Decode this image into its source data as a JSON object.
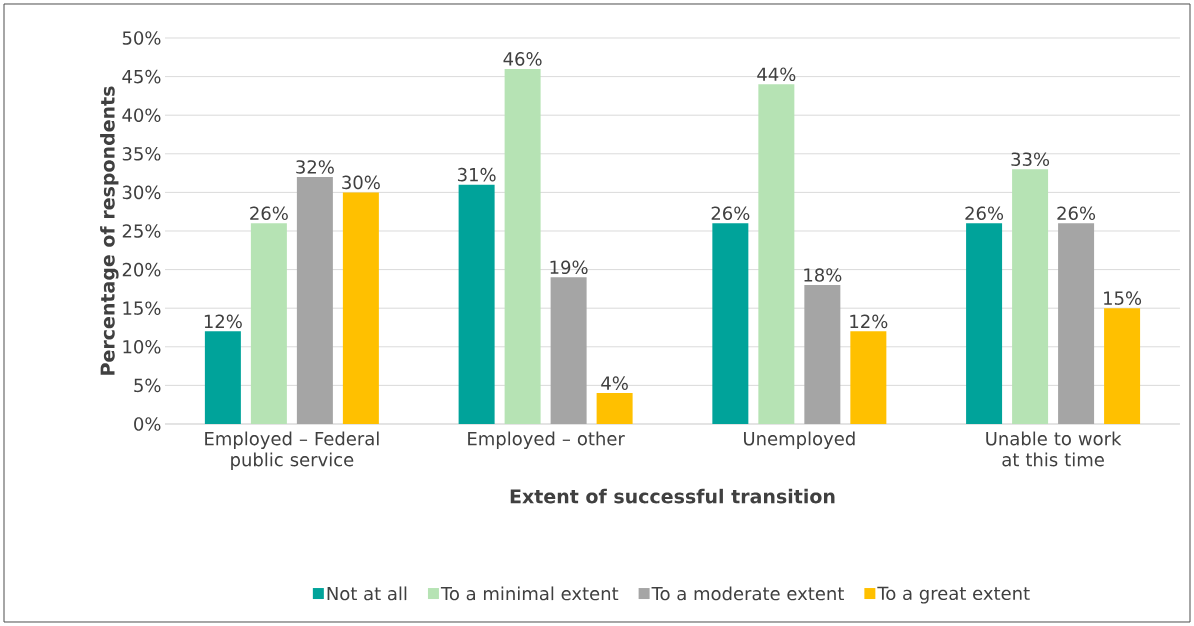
{
  "chart_data": {
    "type": "bar",
    "xlabel": "Extent of successful transition",
    "ylabel": "Percentage of respondents",
    "categories": [
      "Employed – Federal public service",
      "Employed – other",
      "Unemployed",
      "Unable to work at this time"
    ],
    "series": [
      {
        "name": "Not at all",
        "color": "#00a39a",
        "values": [
          12,
          31,
          26,
          26
        ],
        "value_labels": [
          "12%",
          "31%",
          "26%",
          "26%"
        ]
      },
      {
        "name": "To a minimal extent",
        "color": "#b6e3b4",
        "values": [
          26,
          46,
          44,
          33
        ],
        "value_labels": [
          "26%",
          "46%",
          "44%",
          "33%"
        ]
      },
      {
        "name": "To a moderate extent",
        "color": "#a5a5a5",
        "values": [
          32,
          19,
          18,
          26
        ],
        "value_labels": [
          "32%",
          "19%",
          "18%",
          "26%"
        ]
      },
      {
        "name": "To a great extent",
        "color": "#ffc000",
        "values": [
          30,
          4,
          12,
          15
        ],
        "value_labels": [
          "30%",
          "4%",
          "12%",
          "15%"
        ]
      }
    ],
    "ylim": [
      0,
      50
    ],
    "yticks": [
      {
        "value": 0,
        "label": "0%"
      },
      {
        "value": 5,
        "label": "5%"
      },
      {
        "value": 10,
        "label": "10%"
      },
      {
        "value": 15,
        "label": "15%"
      },
      {
        "value": 20,
        "label": "20%"
      },
      {
        "value": 25,
        "label": "25%"
      },
      {
        "value": 30,
        "label": "30%"
      },
      {
        "value": 35,
        "label": "35%"
      },
      {
        "value": 40,
        "label": "40%"
      },
      {
        "value": 45,
        "label": "45%"
      },
      {
        "value": 50,
        "label": "50%"
      }
    ],
    "grid": "y",
    "legend": "bottom"
  }
}
